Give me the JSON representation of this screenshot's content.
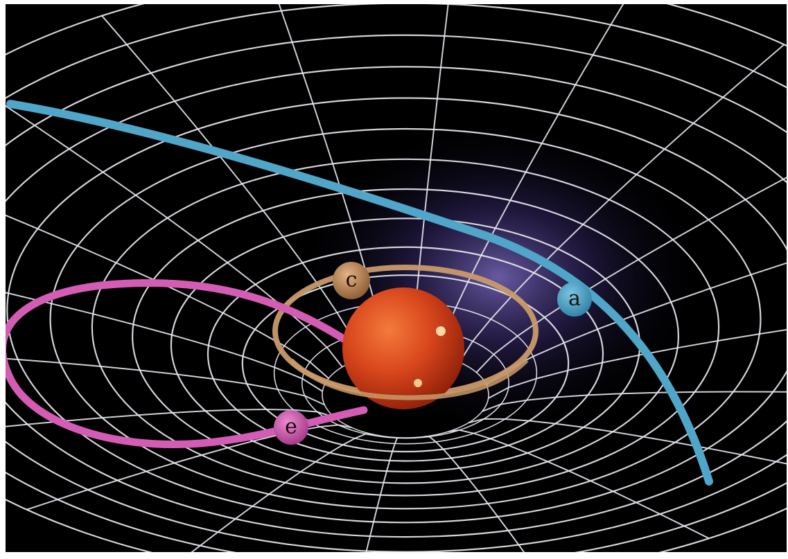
{
  "labels": {
    "a": "a",
    "c": "c",
    "e": "e"
  },
  "colors": {
    "background": "#000000",
    "frame": "#ffffff",
    "grid": "#e6e6ee",
    "path_a": "#4fa6c8",
    "path_c": "#c99a6a",
    "path_e": "#d45cb4",
    "star": "#d2441a",
    "glow": "#6f5db8"
  },
  "icons": {
    "star": "star-sphere-icon",
    "marker_a": "marker-a-icon",
    "marker_c": "marker-c-icon",
    "marker_e": "marker-e-icon"
  }
}
